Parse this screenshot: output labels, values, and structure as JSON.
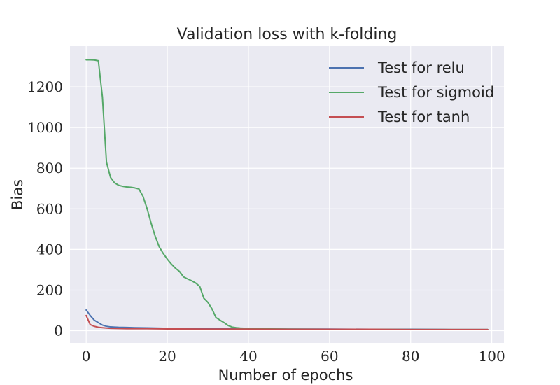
{
  "chart_data": {
    "type": "line",
    "title": "Validation loss with k-folding",
    "xlabel": "Number of epochs",
    "ylabel": "Bias",
    "xlim": [
      -4,
      103
    ],
    "ylim": [
      -60,
      1400
    ],
    "xticks": [
      0,
      20,
      40,
      60,
      80,
      100
    ],
    "yticks": [
      0,
      200,
      400,
      600,
      800,
      1000,
      1200
    ],
    "grid": true,
    "legend_position": "top-right",
    "series": [
      {
        "name": "Test for relu",
        "color": "#4c72b0",
        "points": [
          [
            0,
            102
          ],
          [
            1,
            75
          ],
          [
            2,
            52
          ],
          [
            3,
            40
          ],
          [
            4,
            28
          ],
          [
            5,
            22
          ],
          [
            6,
            19
          ],
          [
            7,
            18
          ],
          [
            8,
            17
          ],
          [
            10,
            16
          ],
          [
            12,
            15
          ],
          [
            15,
            14
          ],
          [
            20,
            12
          ],
          [
            25,
            11
          ],
          [
            30,
            10
          ],
          [
            35,
            9
          ],
          [
            40,
            9
          ],
          [
            50,
            8
          ],
          [
            60,
            8
          ],
          [
            70,
            7
          ],
          [
            80,
            7
          ],
          [
            90,
            6
          ],
          [
            99,
            6
          ]
        ]
      },
      {
        "name": "Test for sigmoid",
        "color": "#55a868",
        "points": [
          [
            0,
            1333
          ],
          [
            1,
            1333
          ],
          [
            2,
            1332
          ],
          [
            3,
            1328
          ],
          [
            4,
            1150
          ],
          [
            5,
            830
          ],
          [
            6,
            755
          ],
          [
            7,
            728
          ],
          [
            8,
            716
          ],
          [
            9,
            711
          ],
          [
            10,
            708
          ],
          [
            11,
            706
          ],
          [
            12,
            703
          ],
          [
            13,
            698
          ],
          [
            14,
            662
          ],
          [
            15,
            602
          ],
          [
            16,
            530
          ],
          [
            17,
            466
          ],
          [
            18,
            413
          ],
          [
            19,
            380
          ],
          [
            20,
            352
          ],
          [
            21,
            328
          ],
          [
            22,
            308
          ],
          [
            23,
            292
          ],
          [
            24,
            265
          ],
          [
            25,
            255
          ],
          [
            26,
            246
          ],
          [
            27,
            235
          ],
          [
            28,
            218
          ],
          [
            29,
            160
          ],
          [
            30,
            140
          ],
          [
            31,
            108
          ],
          [
            32,
            65
          ],
          [
            33,
            52
          ],
          [
            34,
            40
          ],
          [
            35,
            26
          ],
          [
            36,
            18
          ],
          [
            37,
            15
          ],
          [
            38,
            13
          ],
          [
            40,
            11
          ],
          [
            45,
            9
          ],
          [
            50,
            8
          ],
          [
            60,
            7
          ],
          [
            70,
            7
          ],
          [
            80,
            6
          ],
          [
            90,
            6
          ],
          [
            99,
            6
          ]
        ]
      },
      {
        "name": "Test for tanh",
        "color": "#c44e52",
        "points": [
          [
            0,
            75
          ],
          [
            1,
            30
          ],
          [
            2,
            22
          ],
          [
            3,
            17
          ],
          [
            4,
            15
          ],
          [
            5,
            13
          ],
          [
            6,
            12
          ],
          [
            8,
            11
          ],
          [
            10,
            10
          ],
          [
            15,
            10
          ],
          [
            20,
            9
          ],
          [
            30,
            8
          ],
          [
            40,
            8
          ],
          [
            50,
            7
          ],
          [
            60,
            7
          ],
          [
            70,
            7
          ],
          [
            80,
            6
          ],
          [
            90,
            6
          ],
          [
            99,
            6
          ]
        ]
      }
    ]
  }
}
